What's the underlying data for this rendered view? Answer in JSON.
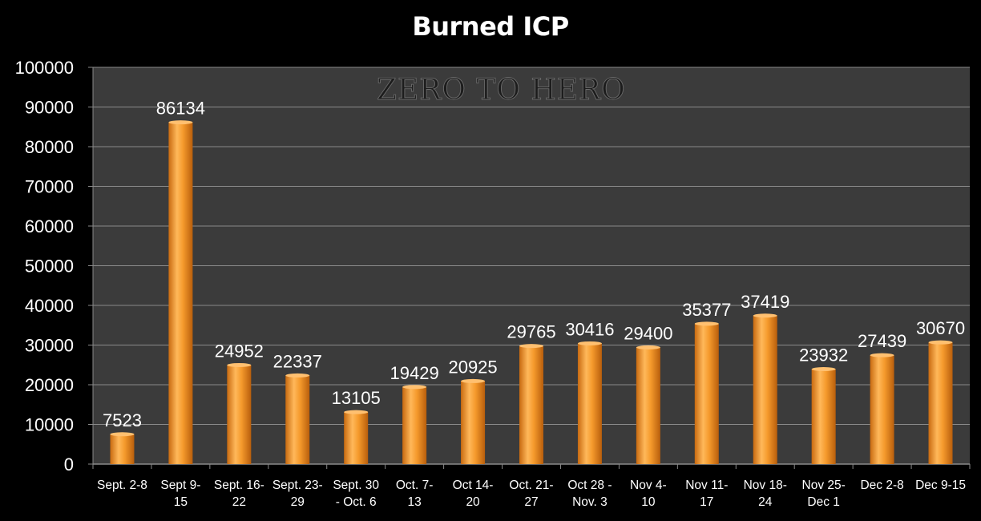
{
  "chart_data": {
    "type": "bar",
    "title": "Burned ICP",
    "watermark": "ZERO TO HERO",
    "xlabel": "",
    "ylabel": "",
    "ylim": [
      0,
      100000
    ],
    "yticks": [
      0,
      10000,
      20000,
      30000,
      40000,
      50000,
      60000,
      70000,
      80000,
      90000,
      100000
    ],
    "grid": true,
    "legend": "none",
    "categories": [
      [
        "Sept. 2-8"
      ],
      [
        "Sept 9-",
        "15"
      ],
      [
        "Sept. 16-",
        "22"
      ],
      [
        "Sept. 23-",
        "29"
      ],
      [
        "Sept. 30",
        "- Oct. 6"
      ],
      [
        "Oct. 7-",
        "13"
      ],
      [
        "Oct 14-",
        "20"
      ],
      [
        "Oct. 21-",
        "27"
      ],
      [
        "Oct 28 -",
        "Nov. 3"
      ],
      [
        "Nov 4-",
        "10"
      ],
      [
        "Nov 11-",
        "17"
      ],
      [
        "Nov 18-",
        "24"
      ],
      [
        "Nov 25-",
        "Dec 1"
      ],
      [
        "Dec 2-8"
      ],
      [
        "Dec 9-15"
      ]
    ],
    "values": [
      7523,
      86134,
      24952,
      22337,
      13105,
      19429,
      20925,
      29765,
      30416,
      29400,
      35377,
      37419,
      23932,
      27439,
      30670
    ],
    "data_labels": [
      "7523",
      "86134",
      "24952",
      "22337",
      "13105",
      "19429",
      "20925",
      "29765",
      "30416",
      "29400",
      "35377",
      "37419",
      "23932",
      "27439",
      "30670"
    ],
    "colors": {
      "bar": "#f59a2c",
      "bar_light": "#ffc070",
      "bar_dark": "#c86a10",
      "plot_background": "#3b3b3b",
      "page_background": "#000000",
      "gridline": "#8a8a8a",
      "text": "#ffffff"
    }
  }
}
